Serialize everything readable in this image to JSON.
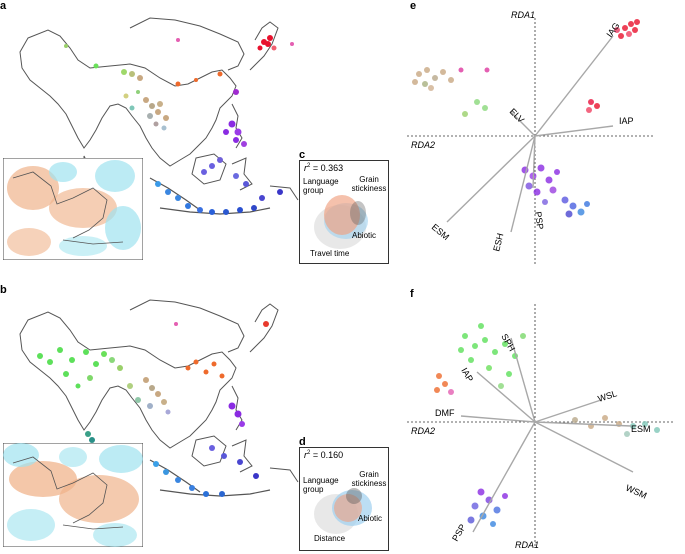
{
  "panels": {
    "a": {
      "label": "a"
    },
    "b": {
      "label": "b"
    },
    "c": {
      "label": "c",
      "r2_prefix": "r",
      "r2_sup": "2",
      "r2_value": " = 0.363",
      "labels": [
        "Language group",
        "Grain stickiness",
        "Abiotic",
        "Travel time"
      ]
    },
    "d": {
      "label": "d",
      "r2_prefix": "r",
      "r2_sup": "2",
      "r2_value": " = 0.160",
      "labels": [
        "Language group",
        "Grain stickiness",
        "Abiotic",
        "Distance"
      ]
    },
    "e": {
      "label": "e",
      "axis_y": "RDA1",
      "axis_x": "RDA2",
      "vectors": [
        "IAG",
        "ELV",
        "IAP",
        "ESM",
        "ESH",
        "PSP"
      ]
    },
    "f": {
      "label": "f",
      "axis_y": "RDA1",
      "axis_x": "RDA2",
      "vectors": [
        "SPH",
        "IAP",
        "WSL",
        "ESM",
        "DMF",
        "WSM",
        "PSP"
      ]
    }
  },
  "colors": {
    "red": "#e8112d",
    "orange": "#ee6a2c",
    "tan": "#c8a882",
    "green": "#5de05a",
    "teal": "#7fc7b8",
    "blue": "#3a86e0",
    "purple": "#8a2be2",
    "pink": "#e45fb2",
    "land": "#ffffff",
    "coast": "#555555",
    "arrow": "#a8a8a8",
    "inset_orange": "#f0b48c",
    "inset_cyan": "#9fe3ef"
  }
}
